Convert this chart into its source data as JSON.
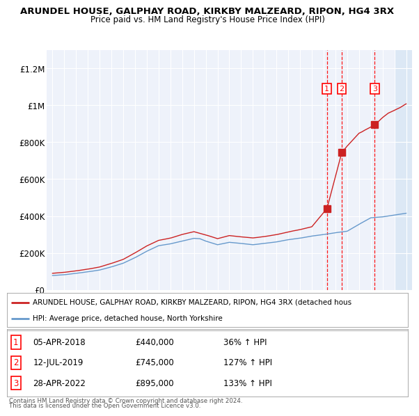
{
  "title": "ARUNDEL HOUSE, GALPHAY ROAD, KIRKBY MALZEARD, RIPON, HG4 3RX",
  "subtitle": "Price paid vs. HM Land Registry's House Price Index (HPI)",
  "legend_line1": "ARUNDEL HOUSE, GALPHAY ROAD, KIRKBY MALZEARD, RIPON, HG4 3RX (detached hous",
  "legend_line2": "HPI: Average price, detached house, North Yorkshire",
  "footnote1": "Contains HM Land Registry data © Crown copyright and database right 2024.",
  "footnote2": "This data is licensed under the Open Government Licence v3.0.",
  "transactions": [
    {
      "num": 1,
      "date": "05-APR-2018",
      "price": "£440,000",
      "pct": "36% ↑ HPI",
      "year": 2018.27
    },
    {
      "num": 2,
      "date": "12-JUL-2019",
      "price": "£745,000",
      "pct": "127% ↑ HPI",
      "year": 2019.54
    },
    {
      "num": 3,
      "date": "28-APR-2022",
      "price": "£895,000",
      "pct": "133% ↑ HPI",
      "year": 2022.33
    }
  ],
  "transaction_values": [
    440000,
    745000,
    895000
  ],
  "hpi_color": "#6699cc",
  "price_color": "#cc2222",
  "background_plot": "#eef2fa",
  "shade_color": "#dce8f5",
  "ylim": [
    0,
    1300000
  ],
  "yticks": [
    0,
    200000,
    400000,
    600000,
    800000,
    1000000,
    1200000
  ],
  "ytick_labels": [
    "£0",
    "£200K",
    "£400K",
    "£600K",
    "£800K",
    "£1M",
    "£1.2M"
  ],
  "xmin": 1994.5,
  "xmax": 2025.5,
  "shade_start": 2024.0,
  "shade_end": 2025.5
}
